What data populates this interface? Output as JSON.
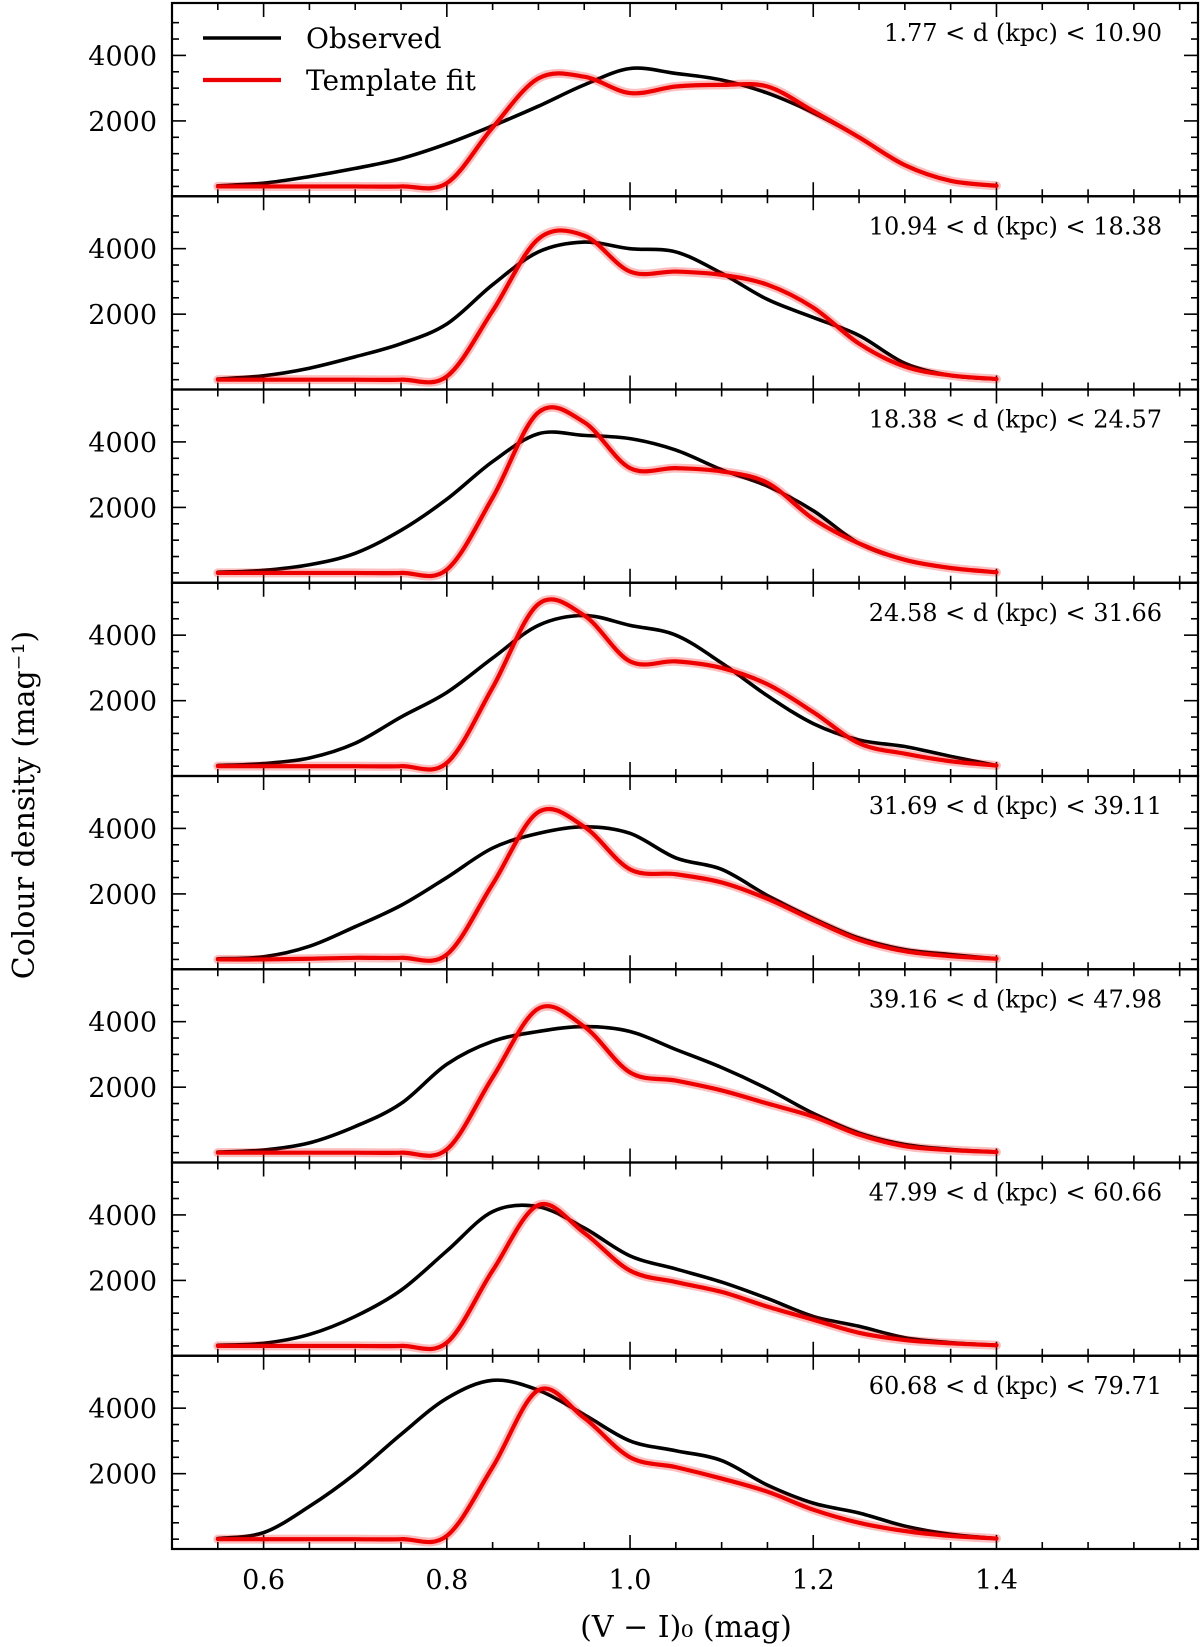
{
  "chart_data": {
    "type": "line",
    "xlabel": "(V − I)₀ (mag)",
    "ylabel": "Colour density (mag⁻¹)",
    "xlim": [
      0.5,
      1.62
    ],
    "ylim": [
      -300,
      5600
    ],
    "x_ticks": [
      0.6,
      0.8,
      1.0,
      1.2,
      1.4
    ],
    "x_tick_labels": [
      "0.6",
      "0.8",
      "1.0",
      "1.2",
      "1.4"
    ],
    "y_ticks": [
      2000,
      4000
    ],
    "y_tick_labels": [
      "2000",
      "4000"
    ],
    "legend": {
      "position": "top-left",
      "entries": [
        {
          "label": "Observed",
          "color": "#000000"
        },
        {
          "label": "Template fit",
          "color": "#ee0000"
        }
      ]
    },
    "x": [
      0.55,
      0.6,
      0.65,
      0.7,
      0.75,
      0.8,
      0.85,
      0.9,
      0.95,
      1.0,
      1.05,
      1.1,
      1.15,
      1.2,
      1.25,
      1.3,
      1.35,
      1.4
    ],
    "panels": [
      {
        "label": "1.77 < d (kpc) < 10.90",
        "series": [
          {
            "name": "Observed",
            "values": [
              20,
              100,
              300,
              550,
              850,
              1300,
              1850,
              2450,
              3100,
              3600,
              3450,
              3250,
              2850,
              2250,
              1500,
              650,
              170,
              20
            ]
          },
          {
            "name": "Template fit",
            "values": [
              0,
              0,
              0,
              0,
              0,
              100,
              1800,
              3300,
              3350,
              2850,
              3050,
              3100,
              3050,
              2300,
              1500,
              650,
              170,
              20
            ]
          }
        ]
      },
      {
        "label": "10.94 < d (kpc) < 18.38",
        "series": [
          {
            "name": "Observed",
            "values": [
              20,
              120,
              350,
              700,
              1100,
              1700,
              2900,
              3900,
              4200,
              4000,
              3900,
              3250,
              2450,
              1900,
              1350,
              500,
              130,
              20
            ]
          },
          {
            "name": "Template fit",
            "values": [
              0,
              0,
              0,
              0,
              0,
              100,
              2100,
              4300,
              4400,
              3300,
              3300,
              3200,
              2900,
              2200,
              1100,
              400,
              130,
              20
            ]
          }
        ]
      },
      {
        "label": "18.38 < d (kpc) < 24.57",
        "series": [
          {
            "name": "Observed",
            "values": [
              20,
              80,
              250,
              600,
              1300,
              2250,
              3400,
              4250,
              4200,
              4100,
              3750,
              3150,
              2650,
              1900,
              900,
              400,
              150,
              20
            ]
          },
          {
            "name": "Template fit",
            "values": [
              0,
              0,
              0,
              0,
              0,
              100,
              2300,
              4900,
              4600,
              3200,
              3200,
              3100,
              2750,
              1650,
              900,
              400,
              150,
              20
            ]
          }
        ]
      },
      {
        "label": "24.58 < d (kpc) < 31.66",
        "series": [
          {
            "name": "Observed",
            "values": [
              20,
              80,
              250,
              700,
              1500,
              2250,
              3300,
              4300,
              4600,
              4300,
              4000,
              3150,
              2150,
              1300,
              800,
              600,
              300,
              20
            ]
          },
          {
            "name": "Template fit",
            "values": [
              0,
              0,
              0,
              0,
              0,
              100,
              2400,
              4950,
              4600,
              3200,
              3200,
              3000,
              2500,
              1650,
              700,
              380,
              150,
              20
            ]
          }
        ]
      },
      {
        "label": "31.69 < d (kpc) < 39.11",
        "series": [
          {
            "name": "Observed",
            "values": [
              20,
              80,
              400,
              1000,
              1650,
              2500,
              3400,
              3850,
              4050,
              3850,
              3100,
              2750,
              1950,
              1250,
              650,
              300,
              150,
              20
            ]
          },
          {
            "name": "Template fit",
            "values": [
              0,
              0,
              20,
              50,
              50,
              150,
              2300,
              4500,
              4050,
              2750,
              2600,
              2350,
              1850,
              1200,
              600,
              250,
              100,
              20
            ]
          }
        ]
      },
      {
        "label": "39.16 < d (kpc) < 47.98",
        "series": [
          {
            "name": "Observed",
            "values": [
              20,
              80,
              300,
              800,
              1500,
              2700,
              3400,
              3700,
              3850,
              3700,
              3150,
              2600,
              1950,
              1200,
              600,
              250,
              100,
              20
            ]
          },
          {
            "name": "Template fit",
            "values": [
              0,
              0,
              0,
              0,
              0,
              100,
              2300,
              4400,
              3850,
              2450,
              2200,
              1900,
              1500,
              1100,
              550,
              200,
              80,
              20
            ]
          }
        ]
      },
      {
        "label": "47.99 < d (kpc) < 60.66",
        "series": [
          {
            "name": "Observed",
            "values": [
              20,
              80,
              350,
              900,
              1700,
              2900,
              4100,
              4250,
              3600,
              2750,
              2350,
              1950,
              1450,
              900,
              600,
              250,
              100,
              20
            ]
          },
          {
            "name": "Template fit",
            "values": [
              0,
              0,
              0,
              0,
              0,
              100,
              2300,
              4300,
              3450,
              2300,
              1950,
              1650,
              1200,
              800,
              400,
              180,
              80,
              20
            ]
          }
        ]
      },
      {
        "label": "60.68 < d (kpc) < 79.71",
        "series": [
          {
            "name": "Observed",
            "values": [
              20,
              200,
              1000,
              2000,
              3200,
              4300,
              4850,
              4550,
              3800,
              3000,
              2700,
              2400,
              1650,
              1100,
              800,
              400,
              150,
              20
            ]
          },
          {
            "name": "Template fit",
            "values": [
              0,
              0,
              0,
              0,
              0,
              100,
              2200,
              4550,
              3700,
              2500,
              2200,
              1850,
              1450,
              900,
              500,
              250,
              100,
              20
            ]
          }
        ]
      }
    ]
  }
}
